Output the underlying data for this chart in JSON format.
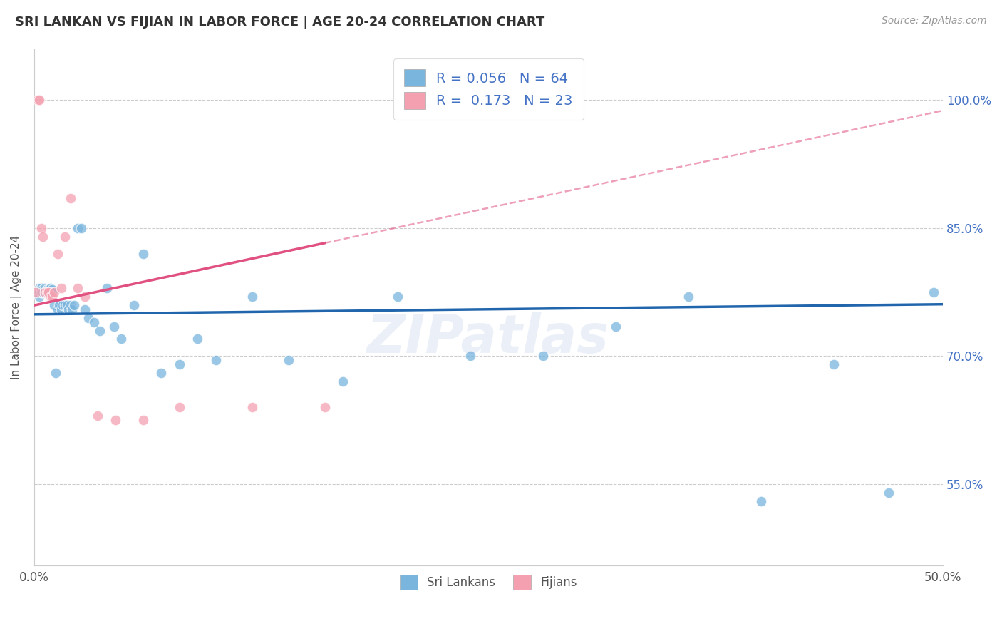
{
  "title": "SRI LANKAN VS FIJIAN IN LABOR FORCE | AGE 20-24 CORRELATION CHART",
  "source": "Source: ZipAtlas.com",
  "ylabel": "In Labor Force | Age 20-24",
  "yticks": [
    "100.0%",
    "85.0%",
    "70.0%",
    "55.0%"
  ],
  "ytick_vals": [
    1.0,
    0.85,
    0.7,
    0.55
  ],
  "xmin": 0.0,
  "xmax": 0.5,
  "ymin": 0.455,
  "ymax": 1.06,
  "sri_lankan_R": 0.056,
  "sri_lankan_N": 64,
  "fijian_R": 0.173,
  "fijian_N": 23,
  "sri_lankan_color": "#7ab5de",
  "fijian_color": "#f4a0b0",
  "sri_lankan_line_color": "#2166ac",
  "fijian_line_color": "#e05080",
  "legend_text_color": "#4472C4",
  "watermark_color": "#4472C4",
  "sri_lankans_x": [
    0.001,
    0.002,
    0.002,
    0.003,
    0.003,
    0.003,
    0.004,
    0.004,
    0.004,
    0.004,
    0.005,
    0.005,
    0.005,
    0.006,
    0.006,
    0.006,
    0.007,
    0.007,
    0.008,
    0.008,
    0.008,
    0.009,
    0.009,
    0.01,
    0.01,
    0.011,
    0.012,
    0.013,
    0.014,
    0.015,
    0.016,
    0.017,
    0.018,
    0.019,
    0.02,
    0.021,
    0.022,
    0.024,
    0.026,
    0.028,
    0.03,
    0.033,
    0.036,
    0.04,
    0.044,
    0.048,
    0.055,
    0.06,
    0.07,
    0.08,
    0.09,
    0.1,
    0.12,
    0.14,
    0.17,
    0.2,
    0.24,
    0.28,
    0.32,
    0.36,
    0.4,
    0.44,
    0.47,
    0.495
  ],
  "sri_lankans_y": [
    0.775,
    0.775,
    0.775,
    0.78,
    0.775,
    0.77,
    0.78,
    0.775,
    0.775,
    0.78,
    0.775,
    0.778,
    0.775,
    0.778,
    0.78,
    0.775,
    0.775,
    0.778,
    0.775,
    0.778,
    0.775,
    0.775,
    0.78,
    0.778,
    0.775,
    0.76,
    0.68,
    0.755,
    0.76,
    0.755,
    0.76,
    0.76,
    0.76,
    0.755,
    0.76,
    0.755,
    0.76,
    0.85,
    0.85,
    0.755,
    0.745,
    0.74,
    0.73,
    0.78,
    0.735,
    0.72,
    0.76,
    0.82,
    0.68,
    0.69,
    0.72,
    0.695,
    0.77,
    0.695,
    0.67,
    0.77,
    0.7,
    0.7,
    0.735,
    0.77,
    0.53,
    0.69,
    0.54,
    0.775
  ],
  "fijians_x": [
    0.001,
    0.002,
    0.003,
    0.004,
    0.005,
    0.006,
    0.007,
    0.008,
    0.009,
    0.01,
    0.011,
    0.013,
    0.015,
    0.017,
    0.02,
    0.024,
    0.028,
    0.035,
    0.045,
    0.06,
    0.08,
    0.12,
    0.16
  ],
  "fijians_y": [
    0.775,
    1.0,
    1.0,
    0.85,
    0.84,
    0.775,
    0.775,
    0.775,
    0.77,
    0.77,
    0.775,
    0.82,
    0.78,
    0.84,
    0.885,
    0.78,
    0.77,
    0.63,
    0.625,
    0.625,
    0.64,
    0.64,
    0.64
  ],
  "fijian_trend_x_start": 0.0,
  "fijian_trend_x_solid_end": 0.16,
  "fijian_trend_x_end": 0.5,
  "xtick_positions": [
    0.0,
    0.1,
    0.2,
    0.3,
    0.4,
    0.5
  ],
  "xtick_labels": [
    "0.0%",
    "",
    "",
    "",
    "",
    "50.0%"
  ]
}
